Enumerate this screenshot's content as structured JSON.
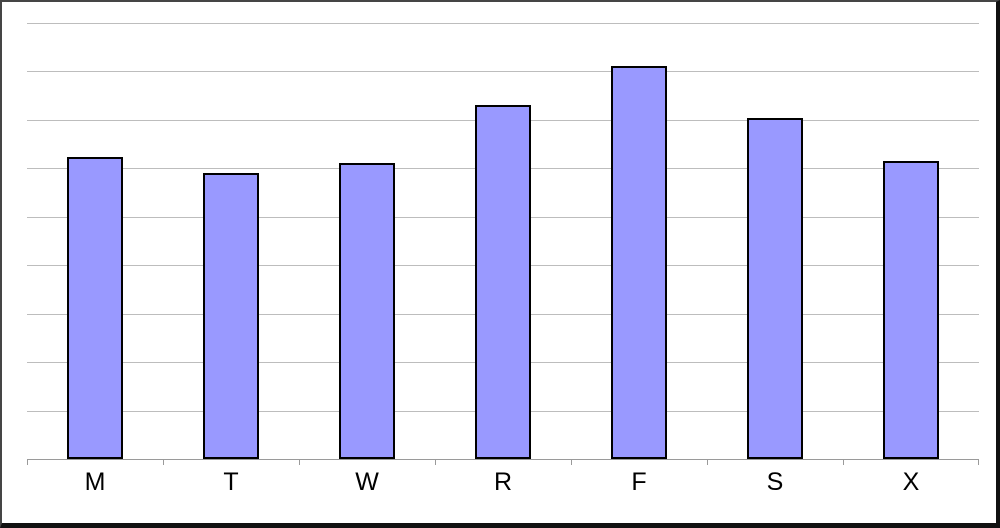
{
  "chart_data": {
    "type": "bar",
    "title": "",
    "xlabel": "",
    "ylabel": "",
    "categories": [
      "M",
      "T",
      "W",
      "R",
      "F",
      "S",
      "X"
    ],
    "values": [
      6.23,
      5.9,
      6.11,
      7.3,
      8.1,
      7.04,
      6.15
    ],
    "ylim": [
      0,
      9
    ],
    "gridline_step": 1,
    "grid": true,
    "legend_position": "none",
    "y_tick_labels_visible": false,
    "bar_color": "#9999FF",
    "bar_border_color": "#000000",
    "gridline_color": "#bdbdbd",
    "axis_color": "#9a9a9a",
    "frame_color": "#111111",
    "background_color": "#FFFFFF"
  }
}
